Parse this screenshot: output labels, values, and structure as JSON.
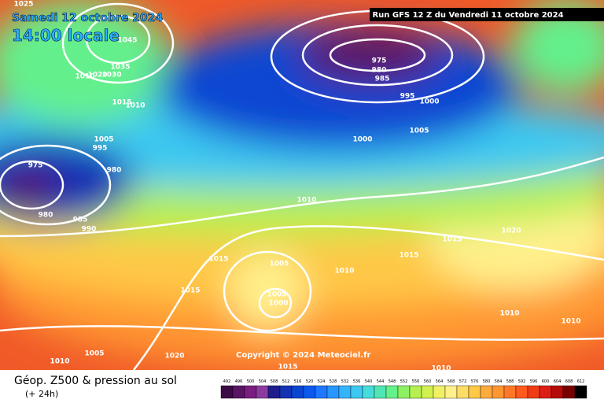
{
  "header": {
    "date": "Samedi 12 octobre 2024",
    "time": "14:00 locale",
    "run": "Run GFS 12 Z du Vendredi 11 octobre 2024"
  },
  "copyright": "Copyright © 2024 Meteociel.fr",
  "footer": {
    "title": "Géop. Z500 & pression au sol",
    "lead": "(+ 24h)"
  },
  "legend": {
    "labels": [
      492,
      496,
      500,
      504,
      508,
      512,
      516,
      520,
      524,
      528,
      532,
      536,
      540,
      544,
      548,
      552,
      556,
      560,
      564,
      568,
      572,
      576,
      580,
      584,
      588,
      592,
      596,
      600,
      604,
      608,
      612
    ],
    "colors": [
      "#3c0a46",
      "#5a1464",
      "#7a1e82",
      "#8c3ca0",
      "#1e1e8c",
      "#1432b4",
      "#0a46d2",
      "#0a5af0",
      "#1e78ff",
      "#2896ff",
      "#32b4ff",
      "#3cc8f0",
      "#46dcdc",
      "#50e6b4",
      "#64f08c",
      "#8cf064",
      "#b4f050",
      "#d2f050",
      "#f0f064",
      "#fff08c",
      "#ffdc64",
      "#ffc846",
      "#ffaa3c",
      "#ff9632",
      "#ff7828",
      "#ff5a1e",
      "#f03c14",
      "#dc1e14",
      "#b40a0a",
      "#780000",
      "#000000"
    ]
  },
  "isobars": [
    1025,
    1045,
    1035,
    1010,
    1020,
    1030,
    1015,
    1010,
    1005,
    995,
    975,
    980,
    980,
    985,
    990,
    975,
    980,
    985,
    995,
    1000,
    1005,
    1000,
    1010,
    1015,
    1020,
    1015,
    1015,
    1005,
    1010,
    1015,
    1005,
    1000,
    1010,
    1010,
    1005,
    1020,
    1010,
    1015,
    1010
  ]
}
